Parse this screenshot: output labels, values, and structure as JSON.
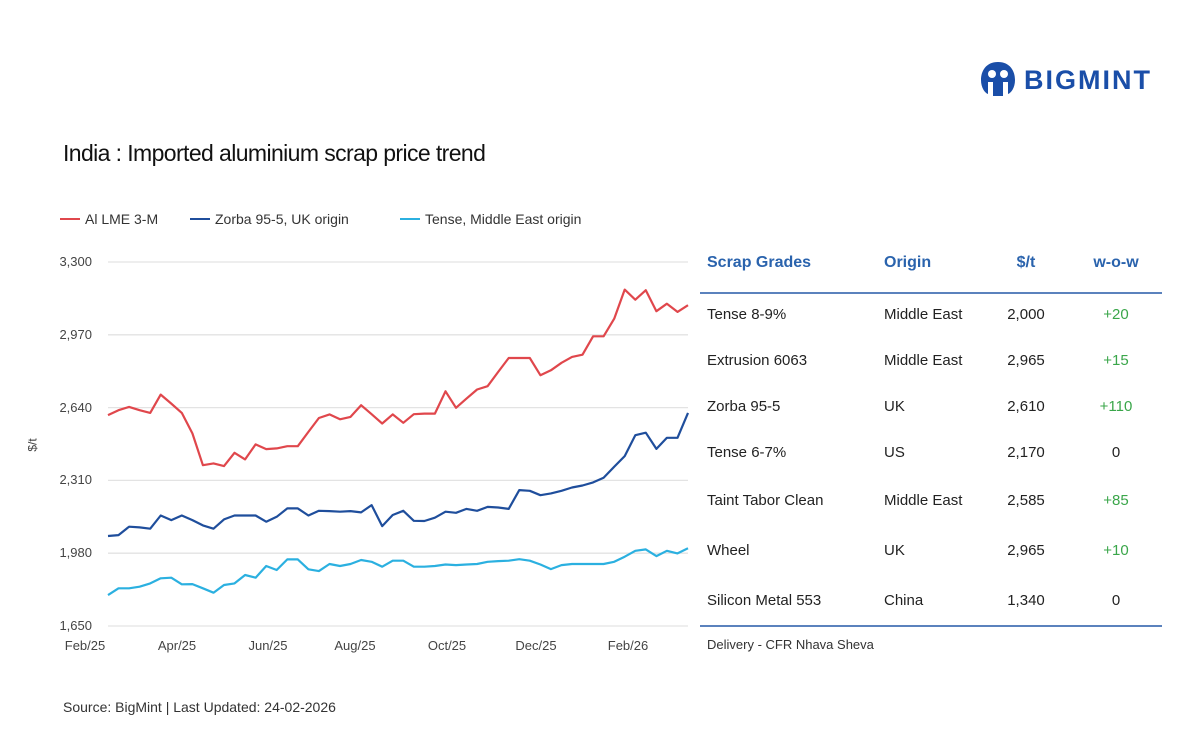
{
  "logo": {
    "text": "BIGMINT",
    "color": "#1a4ea8"
  },
  "chart_data": {
    "type": "line",
    "title": "India : Imported aluminium scrap price trend",
    "ylabel": "$/t",
    "xlabel": "",
    "ylim": [
      1650,
      3300
    ],
    "yticks": [
      "3,300",
      "2,970",
      "2,640",
      "2,310",
      "1,980",
      "1,650"
    ],
    "ytick_values": [
      3300,
      2970,
      2640,
      2310,
      1980,
      1650
    ],
    "xticks": [
      "Feb/25",
      "Apr/25",
      "Jun/25",
      "Aug/25",
      "Oct/25",
      "Dec/25",
      "Feb/26"
    ],
    "grid": "horizontal",
    "legend": "top-left",
    "x_frequency": "weekly",
    "x_start": "2025-02-03",
    "x_end": "2026-02-23",
    "series": [
      {
        "name": "Al LME 3-M",
        "color": "#e0474c",
        "values": [
          2606,
          2628,
          2643,
          2628,
          2616,
          2699,
          2658,
          2616,
          2523,
          2379,
          2387,
          2375,
          2435,
          2405,
          2473,
          2452,
          2455,
          2465,
          2465,
          2530,
          2593,
          2609,
          2587,
          2598,
          2651,
          2610,
          2568,
          2609,
          2571,
          2610,
          2613,
          2613,
          2714,
          2639,
          2681,
          2722,
          2737,
          2802,
          2865,
          2865,
          2865,
          2787,
          2809,
          2843,
          2870,
          2880,
          2963,
          2963,
          3043,
          3175,
          3129,
          3172,
          3077,
          3111,
          3074,
          3104
        ]
      },
      {
        "name": "Zorba 95-5, UK origin",
        "color": "#1f4e9c",
        "values": [
          2058,
          2062,
          2100,
          2097,
          2091,
          2151,
          2130,
          2151,
          2130,
          2106,
          2091,
          2133,
          2151,
          2151,
          2151,
          2123,
          2145,
          2183,
          2183,
          2151,
          2172,
          2171,
          2168,
          2171,
          2165,
          2198,
          2103,
          2153,
          2172,
          2127,
          2126,
          2141,
          2168,
          2163,
          2181,
          2172,
          2190,
          2187,
          2181,
          2266,
          2263,
          2243,
          2251,
          2263,
          2278,
          2287,
          2301,
          2322,
          2372,
          2420,
          2515,
          2526,
          2453,
          2503,
          2503,
          2616
        ]
      },
      {
        "name": "Tense, Middle East origin",
        "color": "#2bb0e0",
        "values": [
          1790,
          1821,
          1821,
          1828,
          1843,
          1866,
          1869,
          1839,
          1840,
          1821,
          1801,
          1836,
          1843,
          1881,
          1869,
          1922,
          1904,
          1952,
          1952,
          1907,
          1899,
          1931,
          1922,
          1931,
          1949,
          1941,
          1919,
          1946,
          1946,
          1919,
          1919,
          1922,
          1929,
          1926,
          1929,
          1931,
          1941,
          1944,
          1946,
          1953,
          1946,
          1929,
          1908,
          1926,
          1931,
          1931,
          1931,
          1931,
          1941,
          1964,
          1991,
          1997,
          1967,
          1991,
          1979,
          2002
        ]
      }
    ]
  },
  "table": {
    "headers": [
      "Scrap Grades",
      "Origin",
      "$/t",
      "w-o-w"
    ],
    "header_color": "#2a63ad",
    "positive_color": "#3aa64a",
    "rows": [
      {
        "grade": "Tense 8-9%",
        "origin": "Middle East",
        "price": "2,000",
        "wow": "+20"
      },
      {
        "grade": "Extrusion 6063",
        "origin": "Middle East",
        "price": "2,965",
        "wow": "+15"
      },
      {
        "grade": "Zorba 95-5",
        "origin": "UK",
        "price": "2,610",
        "wow": "+110"
      },
      {
        "grade": "Tense 6-7%",
        "origin": "US",
        "price": "2,170",
        "wow": "0"
      },
      {
        "grade": "Taint Tabor Clean",
        "origin": "Middle East",
        "price": "2,585",
        "wow": "+85"
      },
      {
        "grade": "Wheel",
        "origin": "UK",
        "price": "2,965",
        "wow": "+10"
      },
      {
        "grade": "Silicon Metal 553",
        "origin": "China",
        "price": "1,340",
        "wow": "0"
      }
    ],
    "footnote": "Delivery - CFR Nhava Sheva"
  },
  "source": "Source: BigMint | Last Updated: 24-02-2026"
}
